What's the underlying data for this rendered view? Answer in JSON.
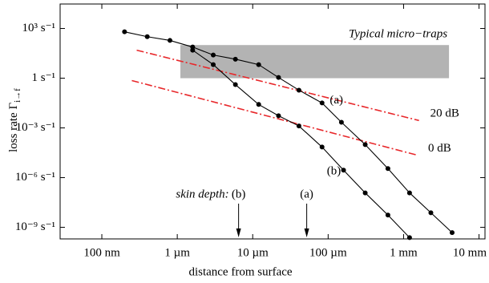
{
  "chart_data": {
    "type": "scatter",
    "xlabel": "distance  from  surface",
    "ylabel": "loss  rate  Γ",
    "ylabel_sub": "i→f",
    "xscale": "log",
    "yscale": "log",
    "xlim": [
      2.8e-08,
      0.012
    ],
    "ylim": [
      2e-10,
      30000.0
    ],
    "xticks": [
      {
        "value": 1e-07,
        "label": "100 nm"
      },
      {
        "value": 1e-06,
        "label": "1 µm"
      },
      {
        "value": 1e-05,
        "label": "10 µm"
      },
      {
        "value": 0.0001,
        "label": "100 µm"
      },
      {
        "value": 0.001,
        "label": "1 mm"
      },
      {
        "value": 0.01,
        "label": "10 mm"
      }
    ],
    "yticks": [
      {
        "value": 1000,
        "label": "10³ s⁻¹"
      },
      {
        "value": 1,
        "label": "1 s⁻¹"
      },
      {
        "value": 0.001,
        "label": "10⁻³ s⁻¹"
      },
      {
        "value": 1e-06,
        "label": "10⁻⁶ s⁻¹"
      },
      {
        "value": 1e-09,
        "label": "10⁻⁹ s⁻¹"
      }
    ],
    "series": [
      {
        "name": "(a)",
        "color": "#000000",
        "x": [
          2e-07,
          4e-07,
          8e-07,
          1.6e-06,
          3e-06,
          5.9e-06,
          1.2e-05,
          2.2e-05,
          4.1e-05,
          8.3e-05,
          0.00015,
          0.00031,
          0.00062,
          0.0012,
          0.0023,
          0.0044
        ],
        "values": [
          630,
          320,
          190,
          76,
          25,
          14,
          6.6,
          1.1,
          0.19,
          0.032,
          0.0022,
          9.8e-05,
          3.5e-06,
          1.2e-07,
          7.6e-09,
          4.8e-10
        ]
      },
      {
        "name": "(b)",
        "color": "#000000",
        "x": [
          1.6e-06,
          3e-06,
          5.9e-06,
          1.2e-05,
          2.2e-05,
          4.1e-05,
          8.3e-05,
          0.00016,
          0.00031,
          0.00062,
          0.0012
        ],
        "values": [
          49,
          6.6,
          0.41,
          0.026,
          0.0054,
          0.0013,
          7e-05,
          2.8e-06,
          1.2e-07,
          5.5e-09,
          2.4e-10
        ]
      }
    ],
    "band": {
      "label": "Typical micro−traps",
      "x": [
        1.1e-06,
        0.004
      ],
      "y": [
        1,
        100
      ],
      "color": "#b3b3b3"
    },
    "reference_lines": [
      {
        "name": "20 dB",
        "color": "#e8282b",
        "x": [
          2.9e-07,
          0.0016
        ],
        "y": [
          49,
          0.0028
        ]
      },
      {
        "name": "0 dB",
        "color": "#e8282b",
        "x": [
          2.5e-07,
          0.0015
        ],
        "y": [
          0.72,
          2.3e-05
        ]
      }
    ],
    "skin_depth": {
      "label": "skin depth:",
      "markers": [
        {
          "label": "(b)",
          "x": 6.5e-06
        },
        {
          "label": "(a)",
          "x": 5.2e-05
        }
      ]
    }
  }
}
